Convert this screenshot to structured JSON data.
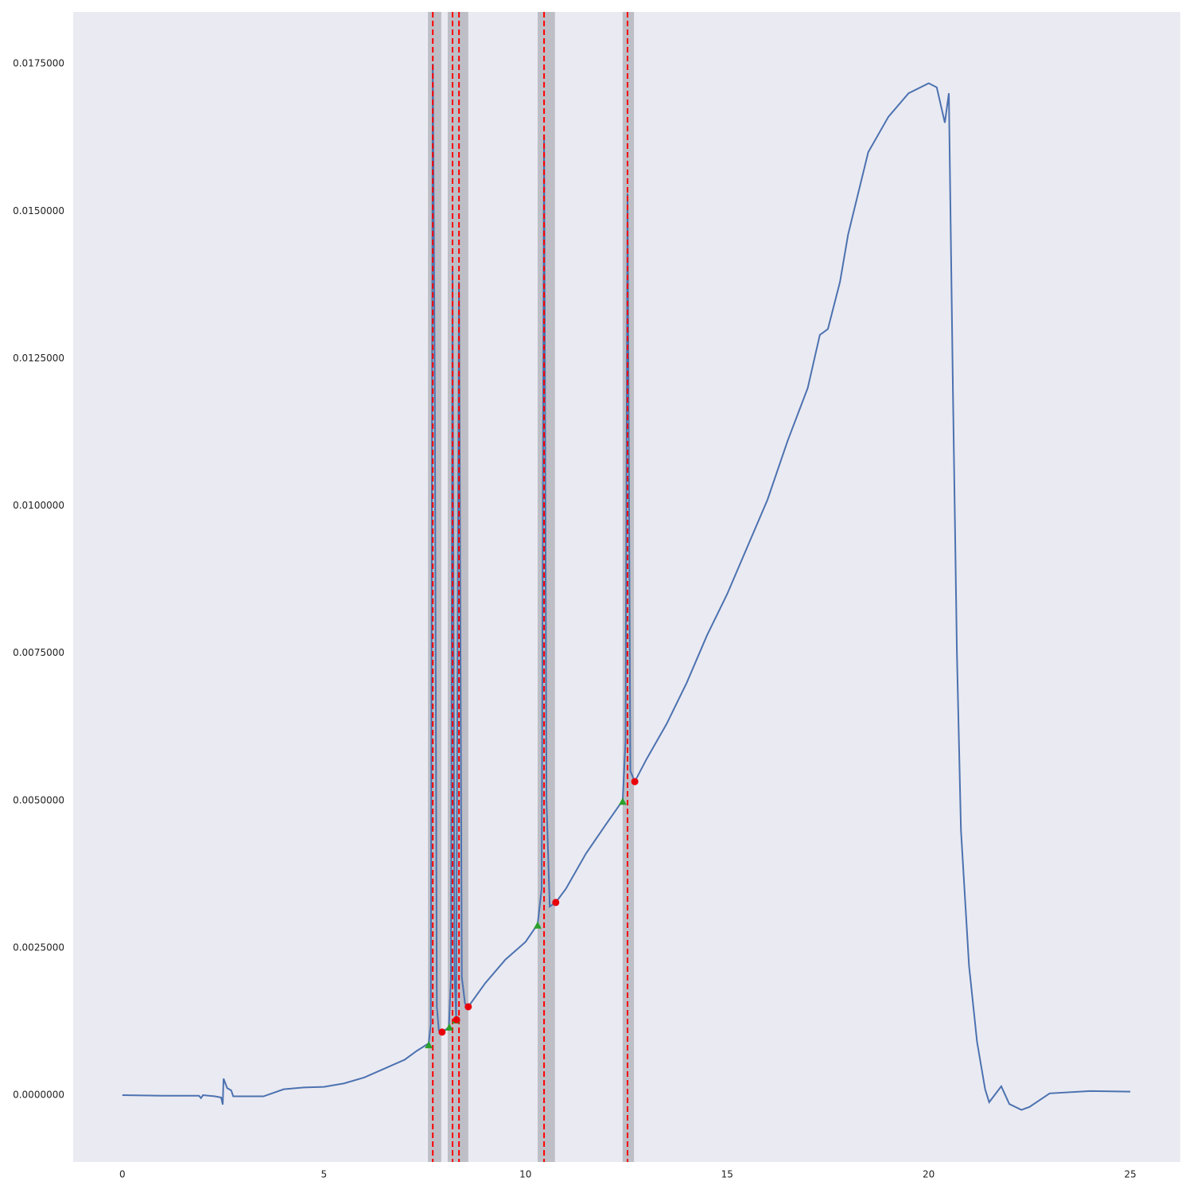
{
  "chart_data": {
    "type": "line",
    "x": [
      0,
      1,
      1.9,
      1.95,
      2.0,
      2.3,
      2.45,
      2.49,
      2.51,
      2.6,
      2.7,
      2.75,
      3.5,
      4,
      4.5,
      5,
      5.5,
      6,
      6.5,
      7,
      7.3,
      7.6,
      7.65,
      7.7,
      7.75,
      7.8,
      7.85,
      7.93,
      8.1,
      8.15,
      8.19,
      8.24,
      8.28,
      8.35,
      8.42,
      8.5,
      8.58,
      9,
      9.5,
      10,
      10.3,
      10.4,
      10.46,
      10.52,
      10.6,
      10.75,
      11,
      11.5,
      12,
      12.41,
      12.48,
      12.53,
      12.6,
      12.71,
      13,
      13.5,
      14,
      14.5,
      15,
      15.5,
      16,
      16.5,
      17,
      17.3,
      17.5,
      17.8,
      18,
      18.5,
      19,
      19.5,
      20,
      20.2,
      20.4,
      20.5,
      20.6,
      20.7,
      20.8,
      21,
      21.2,
      21.4,
      21.5,
      21.8,
      21.9,
      22,
      22.3,
      22.5,
      23,
      24,
      25
    ],
    "series": [
      {
        "color": "#4c72b0",
        "values": [
          0,
          -1e-05,
          -1e-05,
          -5e-05,
          0.0,
          -2e-05,
          -4e-05,
          -0.00016,
          0.00028,
          0.00012,
          8e-05,
          -2e-05,
          -2e-05,
          0.0001,
          0.00013,
          0.00014,
          0.0002,
          0.0003,
          0.00045,
          0.0006,
          0.00075,
          0.00088,
          0.0012,
          0.0175,
          0.012,
          0.0015,
          0.0011,
          0.00107,
          0.00115,
          0.002,
          0.014,
          0.002,
          0.0013,
          0.0138,
          0.002,
          0.00155,
          0.0015,
          0.0019,
          0.0023,
          0.0026,
          0.0029,
          0.0035,
          0.0163,
          0.005,
          0.0032,
          0.00327,
          0.0035,
          0.0041,
          0.0046,
          0.005,
          0.006,
          0.0153,
          0.0055,
          0.00532,
          0.0057,
          0.0063,
          0.007,
          0.0078,
          0.0085,
          0.0093,
          0.0101,
          0.0111,
          0.012,
          0.0129,
          0.013,
          0.0138,
          0.0146,
          0.016,
          0.0166,
          0.017,
          0.01717,
          0.0171,
          0.0165,
          0.017,
          0.012,
          0.0075,
          0.0045,
          0.0022,
          0.0009,
          0.0001,
          -0.00012,
          0.00015,
          0.0,
          -0.00015,
          -0.00025,
          -0.0002,
          3e-05,
          7e-05,
          6e-05
        ]
      }
    ],
    "peak_starts": {
      "color": "#2ca02c",
      "x": [
        7.6,
        8.11,
        8.27,
        10.3,
        12.41
      ],
      "values": [
        0.00085,
        0.00115,
        0.00127,
        0.00288,
        0.00498
      ]
    },
    "peak_ends": {
      "color": "#e8000b",
      "x": [
        7.93,
        8.29,
        8.58,
        10.75,
        12.71
      ],
      "values": [
        0.00107,
        0.00128,
        0.0015,
        0.00327,
        0.00532
      ]
    },
    "spans": [
      [
        7.58,
        7.91
      ],
      [
        8.07,
        8.58
      ],
      [
        10.3,
        10.73
      ],
      [
        12.41,
        12.69
      ]
    ],
    "span_color": "#a0a0a8",
    "vlines": [
      7.7,
      8.19,
      8.35,
      10.46,
      12.53
    ],
    "vline_color": "#ff0000",
    "xlim": [
      -1.22,
      26.24
    ],
    "ylim": [
      -0.001134,
      0.01838
    ],
    "xticks": [
      0,
      5,
      10,
      15,
      20,
      25
    ],
    "yticks": [
      {
        "value": 0,
        "label": "0.0000000"
      },
      {
        "value": 0.0025,
        "label": "0.0025000"
      },
      {
        "value": 0.005,
        "label": "0.0050000"
      },
      {
        "value": 0.0075,
        "label": "0.0075000"
      },
      {
        "value": 0.01,
        "label": "0.0100000"
      },
      {
        "value": 0.0125,
        "label": "0.0125000"
      },
      {
        "value": 0.015,
        "label": "0.0150000"
      },
      {
        "value": 0.0175,
        "label": "0.0175000"
      }
    ],
    "background": "#eaeaf2",
    "grid": false
  }
}
